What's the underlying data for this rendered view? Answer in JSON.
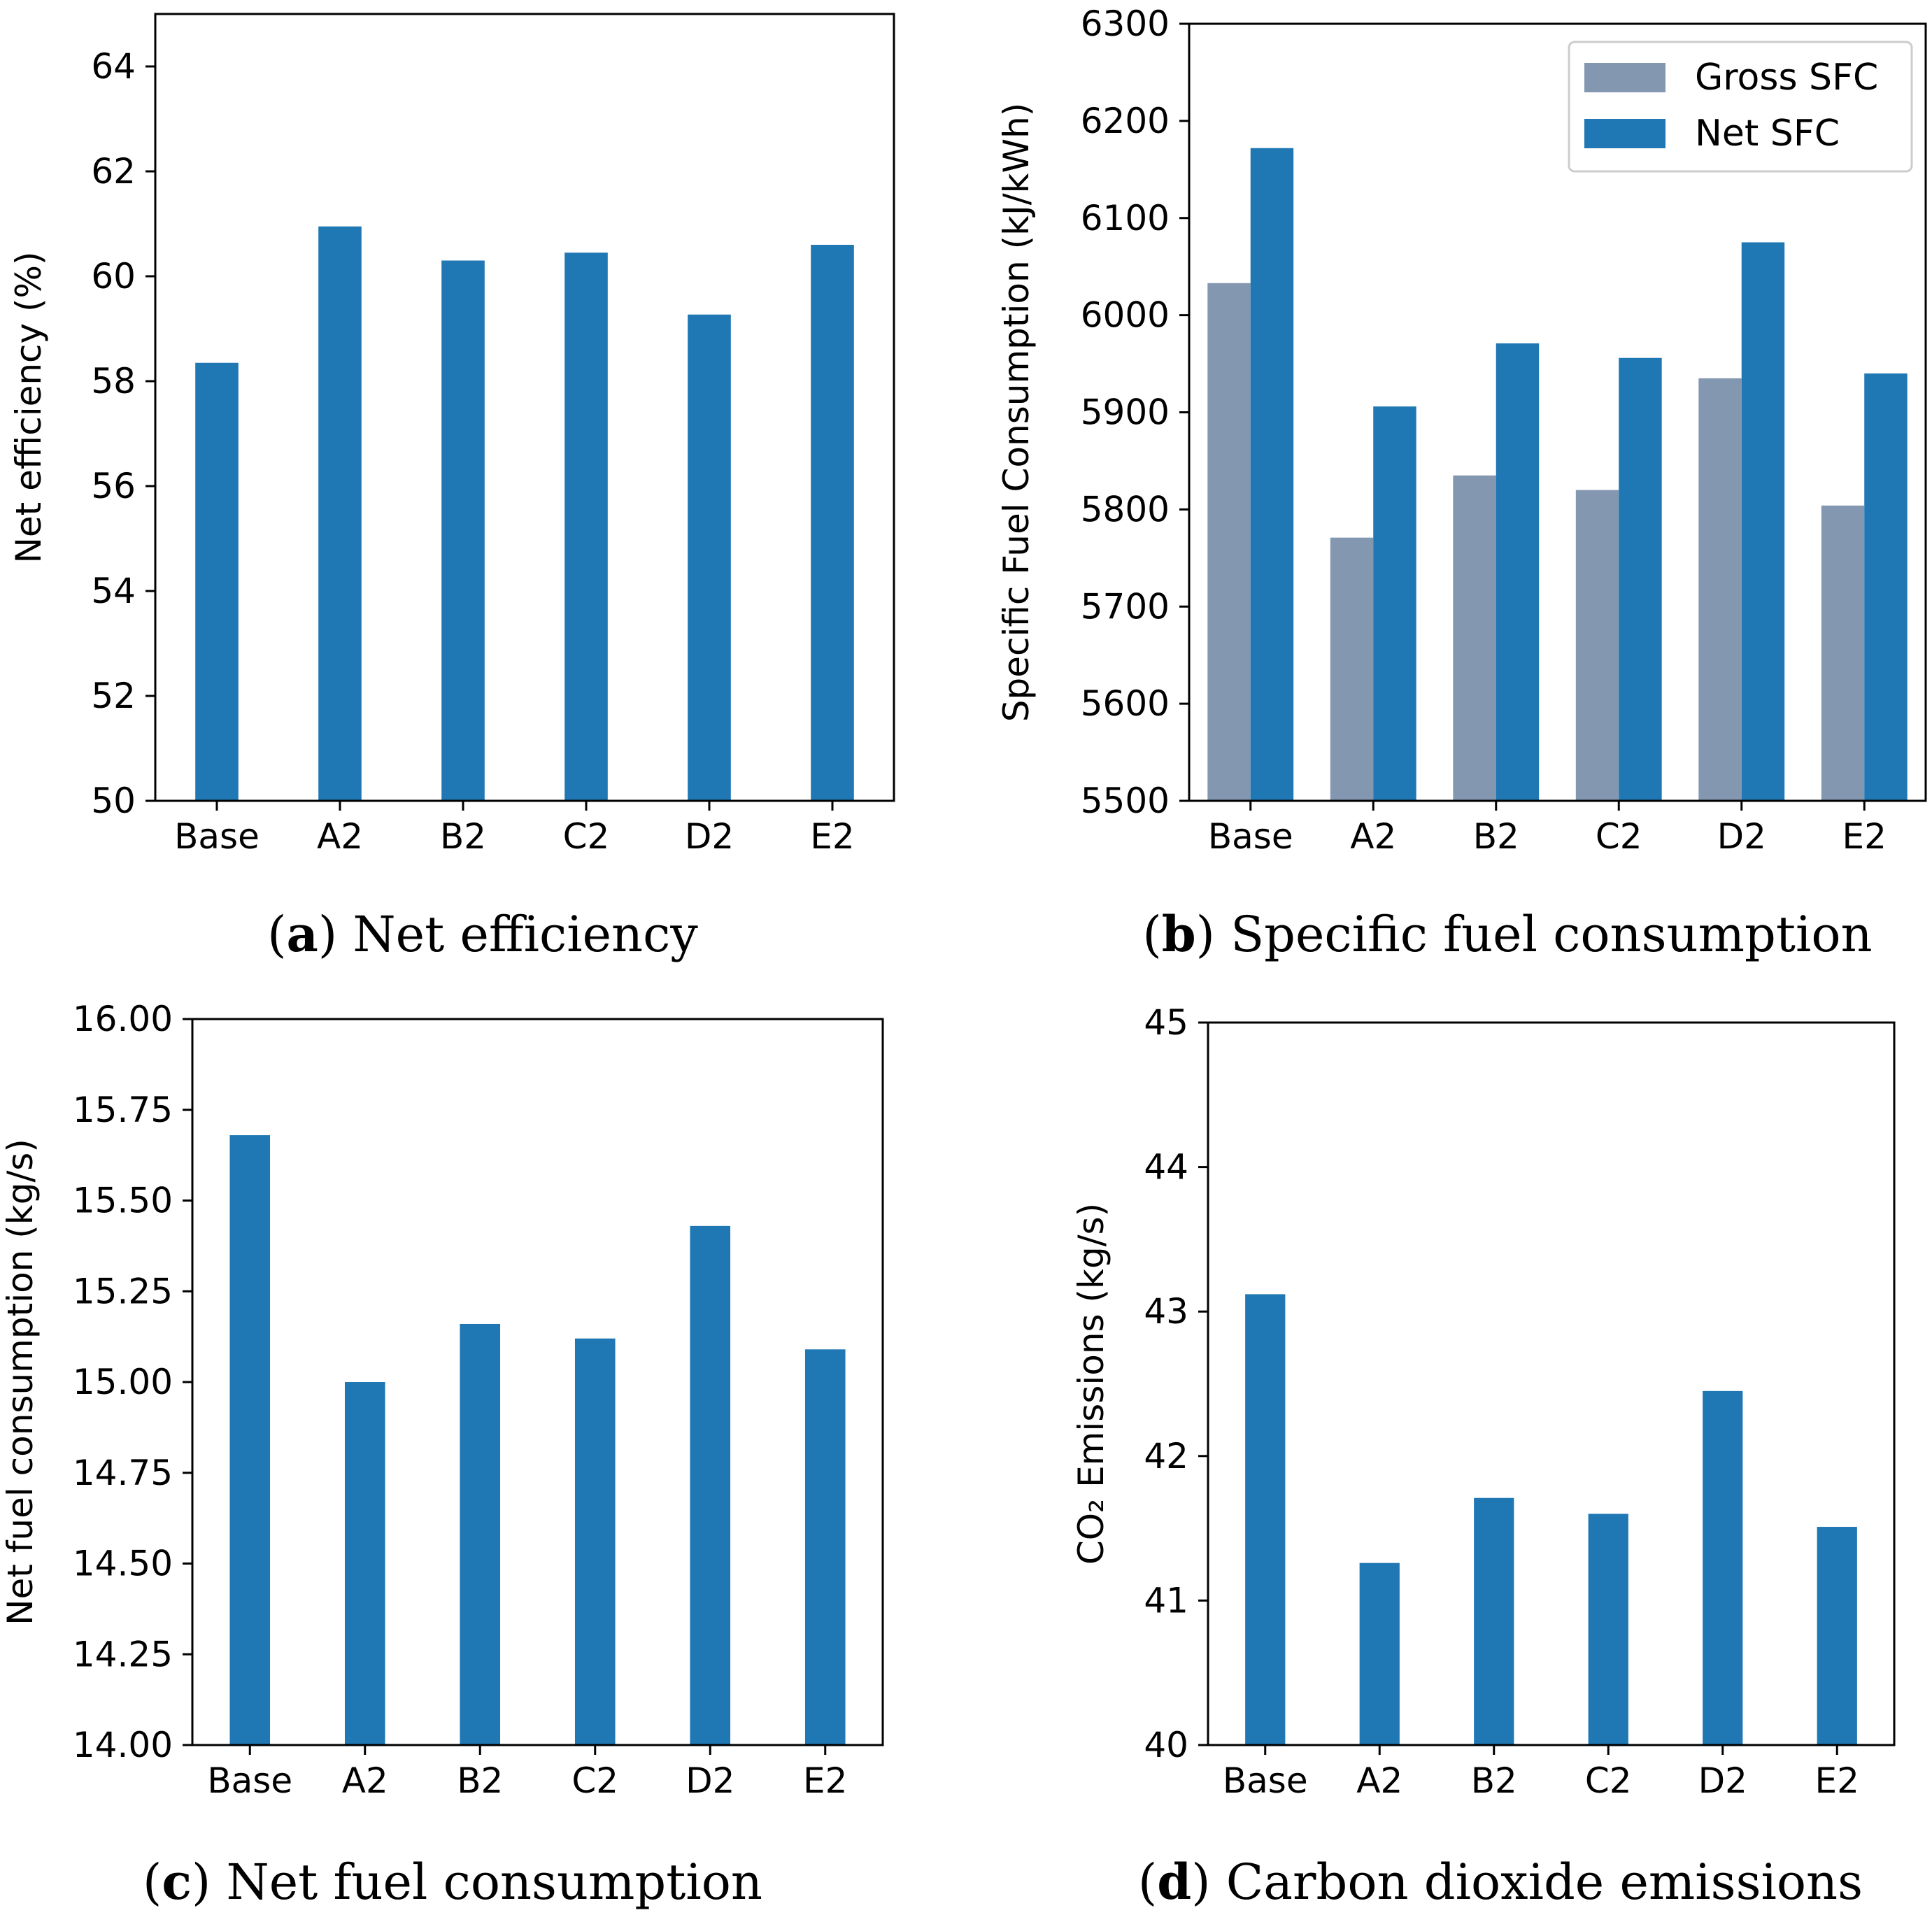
{
  "chart_data": [
    {
      "id": "a",
      "type": "bar",
      "categories": [
        "Base",
        "A2",
        "B2",
        "C2",
        "D2",
        "E2"
      ],
      "series": [
        {
          "name": "Net efficiency",
          "color": "#1f77b4",
          "values": [
            58.35,
            60.95,
            60.3,
            60.45,
            59.27,
            60.6
          ]
        }
      ],
      "title": "",
      "xlabel": "",
      "ylabel": "Net efficiency (%)",
      "ylim": [
        50,
        65
      ],
      "yticks": [
        50,
        52,
        54,
        56,
        58,
        60,
        62,
        64
      ],
      "ytick_labels": [
        "50",
        "52",
        "54",
        "56",
        "58",
        "60",
        "62",
        "64"
      ],
      "grid": false,
      "caption": {
        "letter": "a",
        "text": "Net efficiency"
      }
    },
    {
      "id": "b",
      "type": "bar",
      "categories": [
        "Base",
        "A2",
        "B2",
        "C2",
        "D2",
        "E2"
      ],
      "series": [
        {
          "name": "Gross SFC",
          "color": "#8497b0",
          "values": [
            6033,
            5771,
            5835,
            5820,
            5935,
            5804
          ]
        },
        {
          "name": "Net SFC",
          "color": "#1f77b4",
          "values": [
            6172,
            5906,
            5971,
            5956,
            6075,
            5940
          ]
        }
      ],
      "title": "",
      "xlabel": "",
      "ylabel": "Specific Fuel Consumption (kJ/kWh)",
      "ylim": [
        5500,
        6300
      ],
      "yticks": [
        5500,
        5600,
        5700,
        5800,
        5900,
        6000,
        6100,
        6200,
        6300
      ],
      "ytick_labels": [
        "5500",
        "5600",
        "5700",
        "5800",
        "5900",
        "6000",
        "6100",
        "6200",
        "6300"
      ],
      "legend": {
        "position": "top-right",
        "entries": [
          "Gross SFC",
          "Net SFC"
        ]
      },
      "grid": false,
      "caption": {
        "letter": "b",
        "text": "Specific fuel consumption"
      }
    },
    {
      "id": "c",
      "type": "bar",
      "categories": [
        "Base",
        "A2",
        "B2",
        "C2",
        "D2",
        "E2"
      ],
      "series": [
        {
          "name": "Net fuel consumption",
          "color": "#1f77b4",
          "values": [
            15.68,
            15.0,
            15.16,
            15.12,
            15.43,
            15.09
          ]
        }
      ],
      "title": "",
      "xlabel": "",
      "ylabel": "Net fuel consumption (kg/s)",
      "ylim": [
        14.0,
        16.0
      ],
      "yticks": [
        14.0,
        14.25,
        14.5,
        14.75,
        15.0,
        15.25,
        15.5,
        15.75,
        16.0
      ],
      "ytick_labels": [
        "14.00",
        "14.25",
        "14.50",
        "14.75",
        "15.00",
        "15.25",
        "15.50",
        "15.75",
        "16.00"
      ],
      "grid": false,
      "caption": {
        "letter": "c",
        "text": "Net fuel consumption"
      }
    },
    {
      "id": "d",
      "type": "bar",
      "categories": [
        "Base",
        "A2",
        "B2",
        "C2",
        "D2",
        "E2"
      ],
      "series": [
        {
          "name": "CO2 Emissions",
          "color": "#1f77b4",
          "values": [
            43.12,
            41.26,
            41.71,
            41.6,
            42.45,
            41.51
          ]
        }
      ],
      "title": "",
      "xlabel": "",
      "ylabel": "CO₂ Emissions (kg/s)",
      "ylim": [
        40,
        45
      ],
      "yticks": [
        40,
        41,
        42,
        43,
        44,
        45
      ],
      "ytick_labels": [
        "40",
        "41",
        "42",
        "43",
        "44",
        "45"
      ],
      "grid": false,
      "caption": {
        "letter": "d",
        "text": "Carbon dioxide emissions"
      }
    }
  ]
}
